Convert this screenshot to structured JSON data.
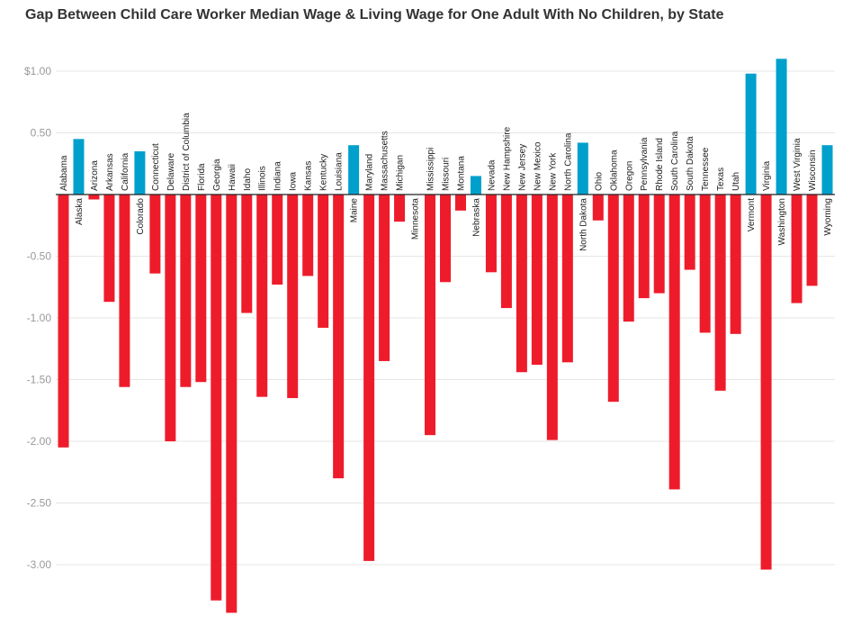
{
  "chart_data": {
    "type": "bar",
    "title": "Gap Between Child Care Worker Median Wage & Living Wage for One Adult With No Children, by State",
    "xlabel": "",
    "ylabel": "",
    "ylim": [
      -3.4,
      1.1
    ],
    "yticks": [
      1.0,
      0.5,
      0,
      -0.5,
      -1.0,
      -1.5,
      -2.0,
      -2.5,
      -3.0
    ],
    "ytick_labels": [
      "$1.00",
      "0.50",
      "",
      "-0.50",
      "-1.00",
      "-1.50",
      "-2.00",
      "-2.50",
      "-3.00"
    ],
    "grid": true,
    "colors": {
      "positive": "#00a0cc",
      "negative": "#ee1c2b",
      "axis": "#222222",
      "grid": "#e5e5e5"
    },
    "categories": [
      "Alabama",
      "Alaska",
      "Arizona",
      "Arkansas",
      "California",
      "Colorado",
      "Connecticut",
      "Delaware",
      "District of Columbia",
      "Florida",
      "Georgia",
      "Hawaii",
      "Idaho",
      "Illinois",
      "Indiana",
      "Iowa",
      "Kansas",
      "Kentucky",
      "Louisiana",
      "Maine",
      "Maryland",
      "Massachusetts",
      "Michigan",
      "Minnesota",
      "Mississippi",
      "Missouri",
      "Montana",
      "Nebraska",
      "Nevada",
      "New Hampshire",
      "New Jersey",
      "New Mexico",
      "New York",
      "North Carolina",
      "North Dakota",
      "Ohio",
      "Oklahoma",
      "Oregon",
      "Pennsylvania",
      "Rhode Island",
      "South Carolina",
      "South Dakota",
      "Tennessee",
      "Texas",
      "Utah",
      "Vermont",
      "Virginia",
      "Washington",
      "West Virginia",
      "Wisconsin",
      "Wyoming"
    ],
    "values": [
      -2.05,
      0.45,
      -0.04,
      -0.87,
      -1.56,
      0.35,
      -0.64,
      -2.0,
      -1.56,
      -1.52,
      -3.29,
      -3.39,
      -0.96,
      -1.64,
      -0.73,
      -1.65,
      -0.66,
      -1.08,
      -2.3,
      0.4,
      -2.97,
      -1.35,
      -0.22,
      0.0,
      -1.95,
      -0.71,
      -0.13,
      0.15,
      -0.63,
      -0.92,
      -1.44,
      -1.38,
      -1.99,
      -1.36,
      0.42,
      -0.21,
      -1.68,
      -1.03,
      -0.84,
      -0.8,
      -2.39,
      -0.61,
      -1.12,
      -1.59,
      -1.13,
      0.98,
      -3.04,
      1.1,
      -0.88,
      -0.74,
      0.4
    ]
  }
}
